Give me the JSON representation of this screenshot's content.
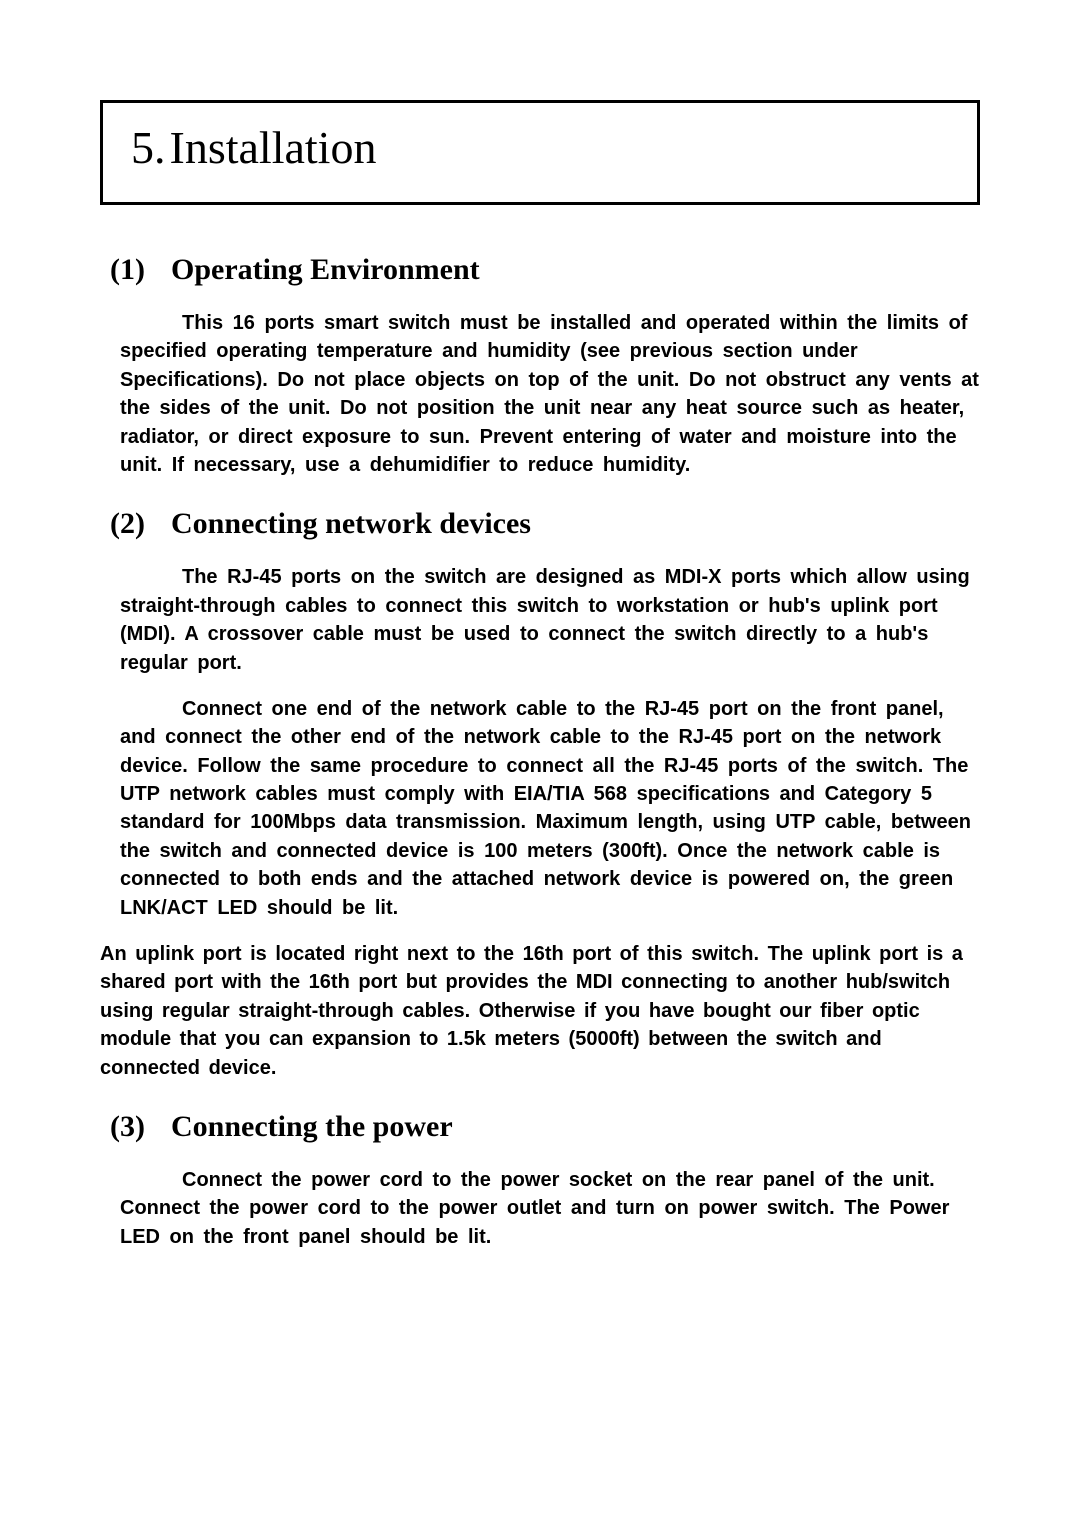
{
  "chapter": {
    "number": "5.",
    "title": "Installation"
  },
  "sections": [
    {
      "num": "(1)",
      "title": "Operating Environment",
      "paras": [
        "This 16 ports smart switch must be installed and operated within the limits of specified operating temperature and humidity (see previous section under Specifications). Do not place objects on top of the unit. Do not obstruct any vents at the sides of the unit. Do not position the unit near any heat source such as heater, radiator, or direct exposure to sun. Prevent entering of water and moisture into the unit. If necessary, use a dehumidifier to reduce humidity."
      ]
    },
    {
      "num": "(2)",
      "title": "Connecting network devices",
      "paras": [
        "The RJ-45 ports on the switch are designed as MDI-X ports which allow using straight-through cables to connect this switch to workstation or hub's uplink port (MDI). A crossover cable must be used to connect the switch directly to a hub's regular port.",
        "Connect one end of the network cable to the RJ-45 port on the front panel, and connect the other end of the network cable to the RJ-45 port on the network device. Follow the same procedure to connect all the RJ-45 ports of the switch.  The UTP network cables must comply with EIA/TIA 568 specifications and Category 5 standard for 100Mbps data transmission. Maximum length, using UTP cable, between the switch and connected device is 100 meters (300ft).  Once the network cable is connected to both ends and the attached network device is powered on, the green LNK/ACT LED should be lit."
      ],
      "tail": "An uplink port is located right next to the 16th port of this switch. The uplink port is a shared port with the 16th port but provides the MDI connecting to another hub/switch using regular straight-through cables. Otherwise if you have bought our fiber optic module that you can expansion to 1.5k meters (5000ft) between the switch and connected device."
    },
    {
      "num": "(3)",
      "title": "Connecting the power",
      "paras": [
        "Connect the power cord to the power socket on the rear panel of the unit.  Connect the power cord to the power outlet and turn on power switch.  The Power LED on the front panel should be lit."
      ]
    }
  ]
}
